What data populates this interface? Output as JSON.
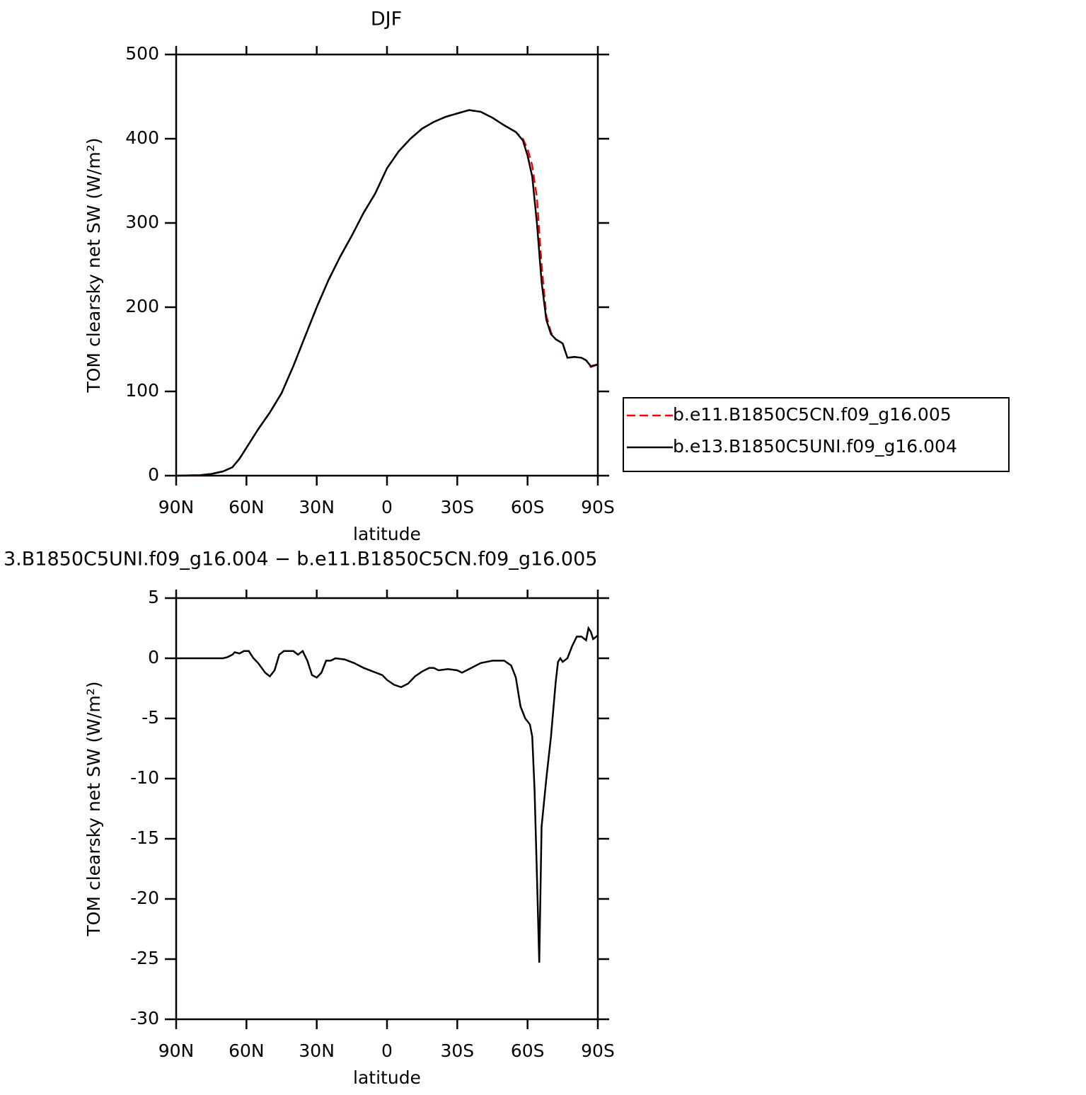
{
  "chart_data": [
    {
      "type": "line",
      "title": "DJF",
      "xlabel": "latitude",
      "ylabel": "TOM clearsky net SW (W/m²)",
      "x": [
        90,
        80,
        75,
        70,
        66,
        63,
        60,
        55,
        50,
        45,
        40,
        35,
        30,
        25,
        20,
        15,
        10,
        5,
        0,
        -5,
        -10,
        -15,
        -20,
        -25,
        -30,
        -35,
        -40,
        -45,
        -50,
        -55,
        -58,
        -60,
        -62,
        -64,
        -66,
        -68,
        -70,
        -72,
        -75,
        -77,
        -80,
        -83,
        -85,
        -87,
        -90
      ],
      "series": [
        {
          "name": "b.e11.B1850C5CN.f09_g16.005",
          "color": "#ff0000",
          "dash": "dashed",
          "values": [
            0,
            0.5,
            2,
            5,
            10,
            20,
            33,
            55,
            75,
            98,
            130,
            165,
            200,
            232,
            260,
            285,
            312,
            335,
            365,
            385,
            400,
            412,
            420,
            426,
            430,
            434,
            432,
            425,
            416,
            408,
            400,
            388,
            368,
            330,
            250,
            190,
            170,
            162,
            157,
            140,
            141,
            140,
            137,
            129,
            132
          ]
        },
        {
          "name": "b.e13.B1850C5UNI.f09_g16.004",
          "color": "#000000",
          "dash": "solid",
          "values": [
            0,
            0.5,
            2,
            5,
            10,
            20,
            33,
            55,
            75,
            98,
            130,
            165,
            200,
            232,
            260,
            285,
            312,
            335,
            365,
            385,
            400,
            412,
            420,
            426,
            430,
            434,
            432,
            425,
            416,
            408,
            398,
            380,
            355,
            300,
            230,
            185,
            168,
            162,
            157,
            140,
            141,
            140,
            137,
            130,
            132
          ]
        }
      ],
      "xlim": [
        90,
        -90
      ],
      "xticks": [
        {
          "value": 90,
          "label": "90N"
        },
        {
          "value": 60,
          "label": "60N"
        },
        {
          "value": 30,
          "label": "30N"
        },
        0,
        {
          "value": -30,
          "label": "30S"
        },
        {
          "value": -60,
          "label": "60S"
        },
        {
          "value": -90,
          "label": "90S"
        }
      ],
      "ylim": [
        0,
        500
      ],
      "yticks": [
        0,
        100,
        200,
        300,
        400,
        500
      ],
      "legend": "outside-right"
    },
    {
      "type": "line",
      "title": "3.B1850C5UNI.f09_g16.004 − b.e11.B1850C5CN.f09_g16.005",
      "xlabel": "latitude",
      "ylabel": "TOM clearsky net SW (W/m²)",
      "x": [
        90,
        70,
        68,
        66,
        65,
        63,
        61,
        59,
        57,
        55,
        52,
        50,
        48,
        46,
        44,
        42,
        40,
        38,
        36,
        34,
        32,
        30,
        28,
        26,
        24,
        22,
        18,
        14,
        10,
        6,
        2,
        0,
        -3,
        -6,
        -9,
        -12,
        -15,
        -18,
        -20,
        -22,
        -26,
        -30,
        -32,
        -36,
        -40,
        -45,
        -50,
        -53,
        -55,
        -57,
        -59,
        -61,
        -62,
        -63,
        -64,
        -65,
        -66,
        -68,
        -70,
        -72,
        -73,
        -74,
        -75,
        -77,
        -79,
        -81,
        -83,
        -85,
        -86,
        -87,
        -88,
        -90
      ],
      "series": [
        {
          "color": "#000000",
          "dash": "solid",
          "values": [
            0,
            0,
            0.1,
            0.3,
            0.5,
            0.4,
            0.6,
            0.6,
            0,
            -0.4,
            -1.2,
            -1.5,
            -1,
            0.3,
            0.6,
            0.6,
            0.6,
            0.3,
            0.6,
            -0.2,
            -1.4,
            -1.6,
            -1.2,
            -0.2,
            -0.2,
            0,
            -0.1,
            -0.4,
            -0.8,
            -1.1,
            -1.4,
            -1.8,
            -2.2,
            -2.4,
            -2.1,
            -1.5,
            -1.1,
            -0.8,
            -0.8,
            -1.0,
            -0.9,
            -1.0,
            -1.2,
            -0.8,
            -0.4,
            -0.2,
            -0.2,
            -0.6,
            -1.6,
            -4,
            -5,
            -5.5,
            -6.5,
            -11,
            -18,
            -25.3,
            -14,
            -10,
            -6.5,
            -2,
            -0.3,
            0,
            -0.3,
            0,
            1,
            1.8,
            1.8,
            1.5,
            2.5,
            2.2,
            1.6,
            1.9
          ]
        }
      ],
      "xlim": [
        90,
        -90
      ],
      "xticks": [
        {
          "value": 90,
          "label": "90N"
        },
        {
          "value": 60,
          "label": "60N"
        },
        {
          "value": 30,
          "label": "30N"
        },
        0,
        {
          "value": -30,
          "label": "30S"
        },
        {
          "value": -60,
          "label": "60S"
        },
        {
          "value": -90,
          "label": "90S"
        }
      ],
      "ylim": [
        -30,
        5
      ],
      "yticks": [
        5,
        0,
        -5,
        -10,
        -15,
        -20,
        -25,
        -30
      ]
    }
  ]
}
